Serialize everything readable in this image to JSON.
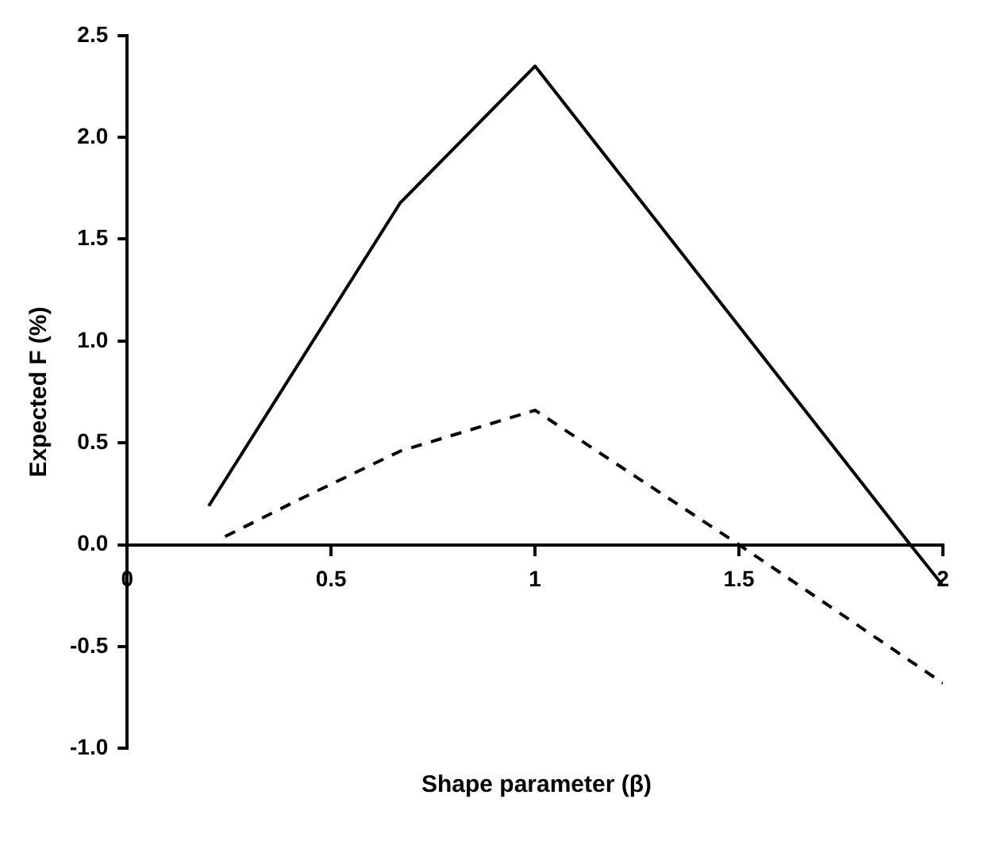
{
  "chart_data": {
    "type": "line",
    "xlabel": "Shape parameter (β)",
    "ylabel": "Expected F (%)",
    "xlim": [
      0,
      2
    ],
    "xticks": [
      0,
      0.5,
      1,
      1.5,
      2
    ],
    "ylim": [
      -1,
      2.5
    ],
    "yticks": [
      {
        "value": -1,
        "label": "-1.0"
      },
      {
        "value": -0.5,
        "label": "-0.5"
      },
      {
        "value": 0,
        "label": "0.0"
      },
      {
        "value": 0.5,
        "label": "0.5"
      },
      {
        "value": 1,
        "label": "1.0"
      },
      {
        "value": 1.5,
        "label": "1.5"
      },
      {
        "value": 2,
        "label": "2.0"
      },
      {
        "value": 2.5,
        "label": "2.5"
      }
    ],
    "grid": false,
    "legend": false,
    "marker": "none",
    "series": [
      {
        "color": "#000000",
        "line_style": "solid",
        "x": [
          0.2,
          0.67,
          1,
          1.92,
          2
        ],
        "values": [
          0.19,
          1.68,
          2.35,
          0,
          -0.2
        ]
      },
      {
        "color": "#000000",
        "line_style": "dashed",
        "x": [
          0.24,
          0.42,
          0.67,
          1,
          1.5,
          2
        ],
        "values": [
          0.04,
          0.22,
          0.46,
          0.66,
          0,
          -0.68
        ]
      }
    ]
  }
}
